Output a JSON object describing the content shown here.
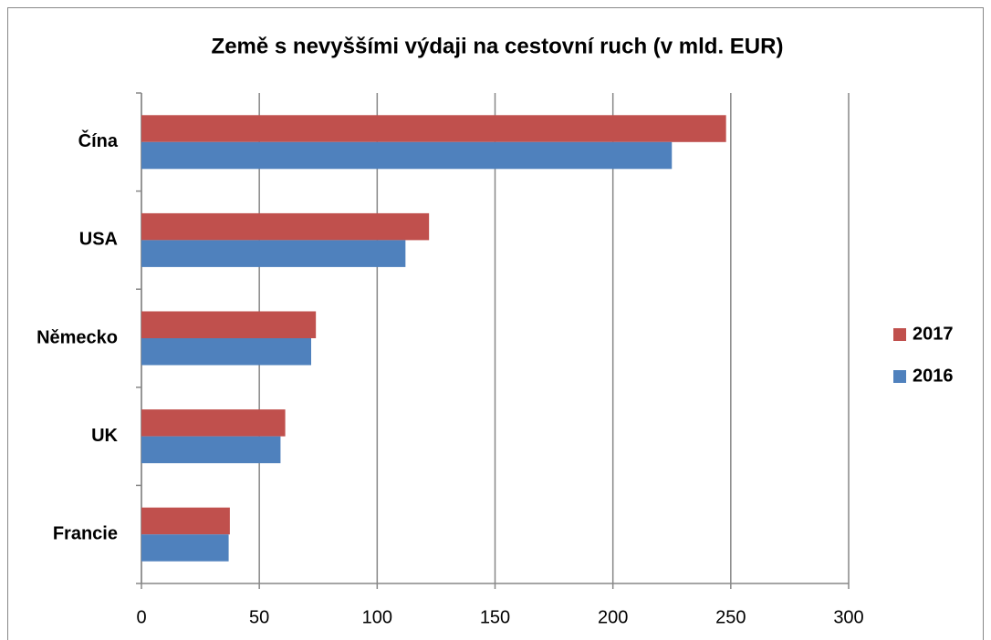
{
  "chart_data": {
    "type": "hbar",
    "title": "Země s nevyššími výdaji na cestovní ruch  (v mld. EUR)",
    "categories": [
      "Čína",
      "USA",
      "Německo",
      "UK",
      "Francie"
    ],
    "series": [
      {
        "name": "2017",
        "color": "#c0504d",
        "values": [
          248,
          122,
          74,
          61,
          37.5
        ]
      },
      {
        "name": "2016",
        "color": "#4f81bd",
        "values": [
          225,
          112,
          72,
          59,
          37
        ]
      }
    ],
    "xlim": [
      0,
      300
    ],
    "xticks": [
      0,
      50,
      100,
      150,
      200,
      250,
      300
    ],
    "grid": true,
    "legend": "right"
  }
}
